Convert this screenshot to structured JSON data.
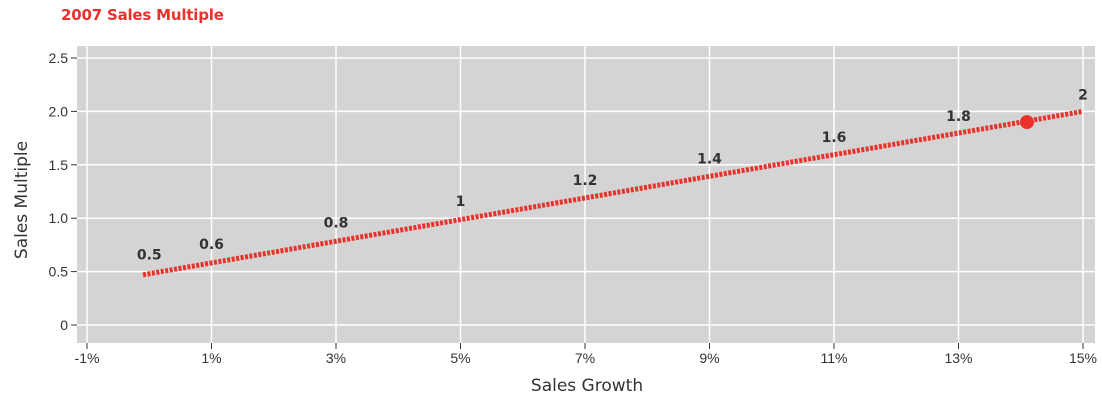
{
  "chart_data": {
    "type": "line",
    "title": "2007 Sales Multiple",
    "xlabel": "Sales Growth",
    "ylabel": "Sales Multiple",
    "xlim": [
      -1,
      15
    ],
    "ylim": [
      0,
      2.5
    ],
    "x_ticks": [
      -1,
      1,
      3,
      5,
      7,
      9,
      11,
      13,
      15
    ],
    "x_tick_labels": [
      "-1%",
      "1%",
      "3%",
      "5%",
      "7%",
      "9%",
      "11%",
      "13%",
      "15%"
    ],
    "y_ticks": [
      0,
      0.5,
      1.0,
      1.5,
      2.0,
      2.5
    ],
    "y_tick_labels": [
      "0",
      "0.5",
      "1.0",
      "1.5",
      "2.0",
      "2.5"
    ],
    "grid": true,
    "line": {
      "x_start": -0.1,
      "y_start": 0.47,
      "x_end": 15,
      "y_end": 2.0
    },
    "points": [
      {
        "x": 0,
        "y": 0.5,
        "label": "0.5"
      },
      {
        "x": 1,
        "y": 0.6,
        "label": "0.6"
      },
      {
        "x": 3,
        "y": 0.8,
        "label": "0.8"
      },
      {
        "x": 5,
        "y": 1.0,
        "label": "1"
      },
      {
        "x": 7,
        "y": 1.2,
        "label": "1.2"
      },
      {
        "x": 9,
        "y": 1.4,
        "label": "1.4"
      },
      {
        "x": 11,
        "y": 1.6,
        "label": "1.6"
      },
      {
        "x": 13,
        "y": 1.8,
        "label": "1.8"
      },
      {
        "x": 15,
        "y": 2.0,
        "label": "2"
      }
    ],
    "highlight_point": {
      "x": 14.1,
      "y": 1.9
    },
    "colors": {
      "line": "#e8322b",
      "plot_bg": "#d4d4d4",
      "grid": "#ffffff",
      "title": "#e8322b"
    }
  }
}
